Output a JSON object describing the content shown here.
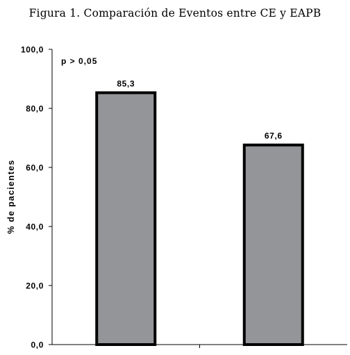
{
  "figure_title": "Figura 1. Comparación de Eventos entre CE y EAPB",
  "chart_data": {
    "type": "bar",
    "categories": [
      "",
      ""
    ],
    "values": [
      85.3,
      67.6
    ],
    "value_labels": [
      "85,3",
      "67,6"
    ],
    "title": "",
    "xlabel": "",
    "ylabel": "% de pacientes",
    "ylim": [
      0,
      100
    ],
    "yticks": [
      0,
      20,
      40,
      60,
      80,
      100
    ],
    "ytick_labels": [
      "0,0",
      "20,0",
      "40,0",
      "60,0",
      "80,0",
      "100,0"
    ],
    "annotation": "p > 0,05",
    "grid": false,
    "legend": "none",
    "colors": {
      "bar_fill": "#939598",
      "bar_border": "#000000",
      "axis": "#000000"
    }
  }
}
